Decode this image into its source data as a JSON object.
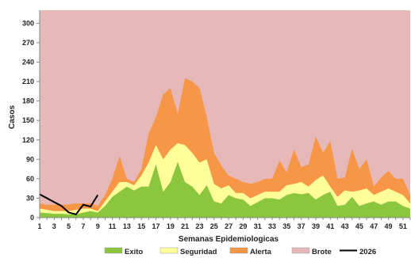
{
  "chart_data": {
    "type": "area",
    "xlabel": "Semanas Epidemiologicas",
    "ylabel": "Casos",
    "ylim": [
      0,
      320
    ],
    "yticks": [
      0,
      30,
      60,
      90,
      120,
      150,
      180,
      210,
      240,
      270,
      300
    ],
    "xlim": [
      1,
      52
    ],
    "xticks": [
      1,
      3,
      5,
      7,
      9,
      11,
      13,
      15,
      17,
      19,
      21,
      23,
      25,
      27,
      29,
      31,
      33,
      35,
      37,
      39,
      41,
      43,
      45,
      47,
      49,
      51
    ],
    "legend_position": "bottom",
    "x": [
      1,
      2,
      3,
      4,
      5,
      6,
      7,
      8,
      9,
      10,
      11,
      12,
      13,
      14,
      15,
      16,
      17,
      18,
      19,
      20,
      21,
      22,
      23,
      24,
      25,
      26,
      27,
      28,
      29,
      30,
      31,
      32,
      33,
      34,
      35,
      36,
      37,
      38,
      39,
      40,
      41,
      42,
      43,
      44,
      45,
      46,
      47,
      48,
      49,
      50,
      51,
      52
    ],
    "series": [
      {
        "name": "Exito",
        "color": "#8cc63f",
        "values": [
          8,
          7,
          6,
          6,
          5,
          5,
          8,
          10,
          8,
          18,
          32,
          40,
          48,
          42,
          48,
          48,
          82,
          40,
          55,
          86,
          55,
          48,
          35,
          50,
          25,
          22,
          35,
          30,
          28,
          18,
          24,
          30,
          30,
          28,
          35,
          38,
          36,
          38,
          28,
          35,
          40,
          18,
          20,
          32,
          18,
          22,
          25,
          20,
          25,
          25,
          18,
          14
        ]
      },
      {
        "name": "Seguridad",
        "color": "#ffff99",
        "values": [
          14,
          12,
          10,
          10,
          10,
          12,
          14,
          14,
          10,
          25,
          40,
          55,
          55,
          50,
          65,
          85,
          112,
          90,
          105,
          115,
          112,
          100,
          85,
          90,
          52,
          45,
          50,
          38,
          38,
          30,
          35,
          40,
          40,
          40,
          50,
          52,
          55,
          48,
          58,
          65,
          48,
          32,
          42,
          40,
          42,
          45,
          35,
          40,
          45,
          40,
          35,
          22
        ]
      },
      {
        "name": "Alerta",
        "color": "#f79646",
        "values": [
          22,
          20,
          20,
          20,
          20,
          22,
          22,
          22,
          18,
          35,
          60,
          95,
          60,
          55,
          75,
          130,
          155,
          190,
          200,
          160,
          215,
          210,
          200,
          155,
          100,
          80,
          65,
          60,
          55,
          52,
          55,
          60,
          60,
          88,
          70,
          105,
          78,
          82,
          125,
          100,
          118,
          60,
          62,
          106,
          75,
          90,
          48,
          62,
          72,
          60,
          60,
          35
        ]
      },
      {
        "name": "Brote",
        "color": "#e6b8b7",
        "fill_to_top": true
      }
    ],
    "line_series": {
      "name": "2026",
      "color": "#000000",
      "x": [
        1,
        2,
        3,
        4,
        5,
        6,
        7,
        8,
        9
      ],
      "values": [
        36,
        30,
        24,
        18,
        8,
        5,
        20,
        17,
        35
      ]
    }
  }
}
